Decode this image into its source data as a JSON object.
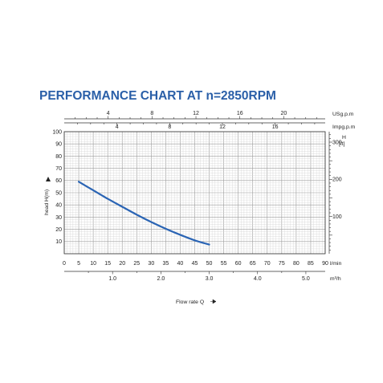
{
  "chart_data": {
    "type": "line",
    "title": "PERFORMANCE CHART AT n=2850RPM",
    "xlabel": "Flow rate Q",
    "ylabel": "head H(m)",
    "xlim": [
      0,
      90
    ],
    "ylim": [
      0,
      100
    ],
    "x_units": "l/min",
    "x_ticks": [
      0,
      5,
      10,
      15,
      20,
      25,
      30,
      35,
      40,
      45,
      50,
      55,
      60,
      65,
      70,
      75,
      80,
      85,
      90
    ],
    "y_ticks": [
      10,
      20,
      30,
      40,
      50,
      60,
      70,
      80,
      90,
      100
    ],
    "x": [
      5,
      10,
      15,
      20,
      25,
      30,
      35,
      40,
      45,
      50
    ],
    "series": [
      {
        "values": [
          59,
          52,
          45,
          38.5,
          32,
          26,
          20.5,
          15.5,
          11,
          7.5
        ],
        "color": "#2a64b4"
      }
    ],
    "grid": true,
    "secondary_axes": {
      "usgpm": {
        "units": "USg.p.m",
        "ticks": [
          4,
          8,
          12,
          16,
          20
        ]
      },
      "impgpm": {
        "units": "Impg.p.m",
        "ticks": [
          4,
          8,
          12,
          16
        ]
      },
      "m3h": {
        "units": "m³/h",
        "ticks": [
          "1.0",
          "2.0",
          "3.0",
          "4.0",
          "5.0"
        ]
      },
      "head_ft": {
        "units_top": "H",
        "units": "[ft]",
        "ticks": [
          100,
          200,
          300
        ]
      }
    }
  }
}
